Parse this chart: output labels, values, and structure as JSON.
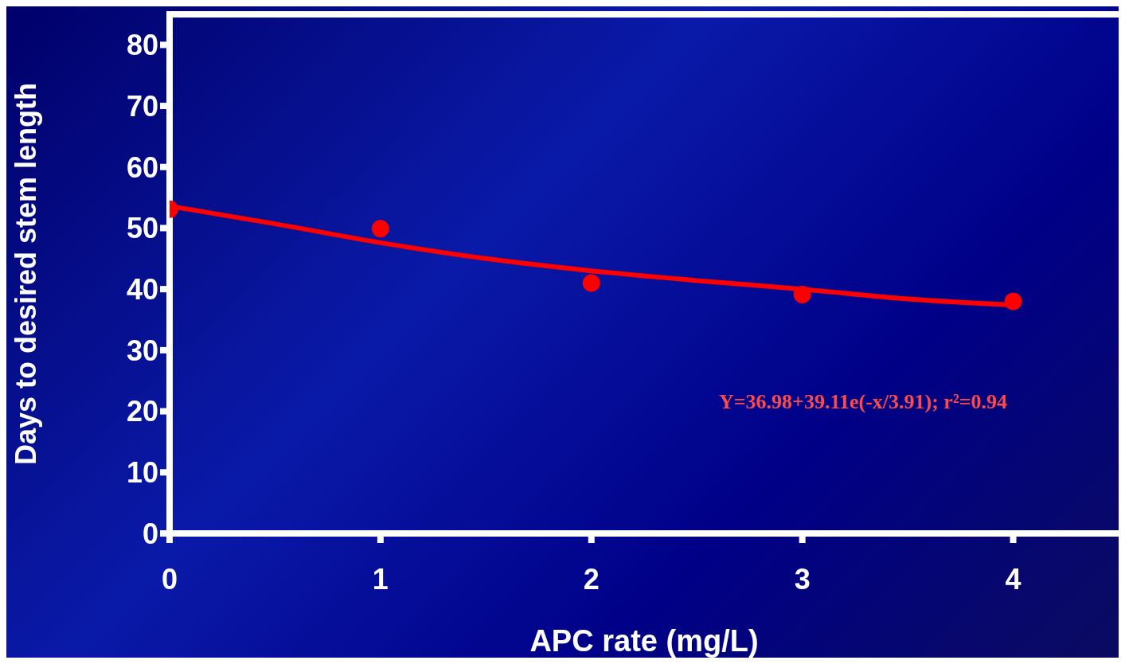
{
  "chart_data": {
    "type": "scatter",
    "xlabel": "APC rate (mg/L)",
    "ylabel": "Days to desired stem length",
    "xlim": [
      0,
      4.5
    ],
    "ylim": [
      0,
      85
    ],
    "xticks": [
      0,
      1,
      2,
      3,
      4
    ],
    "yticks": [
      0,
      10,
      20,
      30,
      40,
      50,
      60,
      70,
      80
    ],
    "marker": "circle",
    "series": [
      {
        "color": "#ff0000",
        "x": [
          0,
          1,
          2,
          3,
          4
        ],
        "values": [
          53.1,
          49.9,
          41.0,
          39.1,
          38.0
        ]
      },
      {
        "type": "line",
        "color": "#ff0000",
        "marker": "none",
        "x": [
          0,
          0.5,
          1,
          1.5,
          2,
          2.5,
          3,
          3.5,
          4
        ],
        "values": [
          53.6,
          50.7,
          47.6,
          45.0,
          43.0,
          41.4,
          40.0,
          38.4,
          37.4
        ]
      }
    ],
    "annotations": [
      "Y=36.98+39.11e(-x/3.91); r²=0.94"
    ]
  }
}
